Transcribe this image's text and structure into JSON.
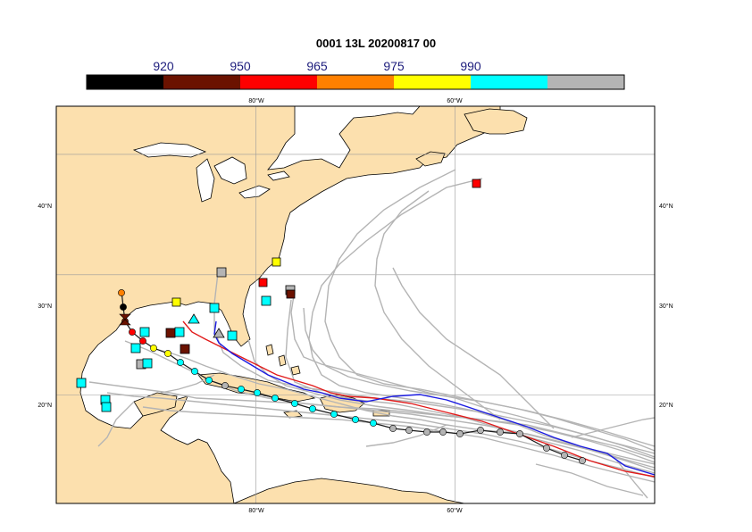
{
  "title": "0001 13L 20200817 00",
  "colorbar": {
    "labels": [
      "920",
      "950",
      "965",
      "975",
      "990"
    ],
    "colors": [
      "#000000",
      "#6b1200",
      "#ff0000",
      "#ff8000",
      "#ffff00",
      "#00ffff",
      "#b4b4b4"
    ]
  },
  "map": {
    "land_color": "#fce0ae",
    "ocean_color": "#ffffff",
    "lon_labels": [
      "80°W",
      "60°W"
    ],
    "lat_labels": [
      "40°N",
      "30°N",
      "20°N"
    ],
    "lon_range": [
      -100,
      -40
    ],
    "lat_range": [
      11,
      44
    ],
    "grid": true
  },
  "tracks": {
    "ensemble_color": "#b4b4b4",
    "red_track_color": "#e11b1b",
    "blue_track_color": "#1b1be1",
    "black_track_color": "#000000"
  }
}
